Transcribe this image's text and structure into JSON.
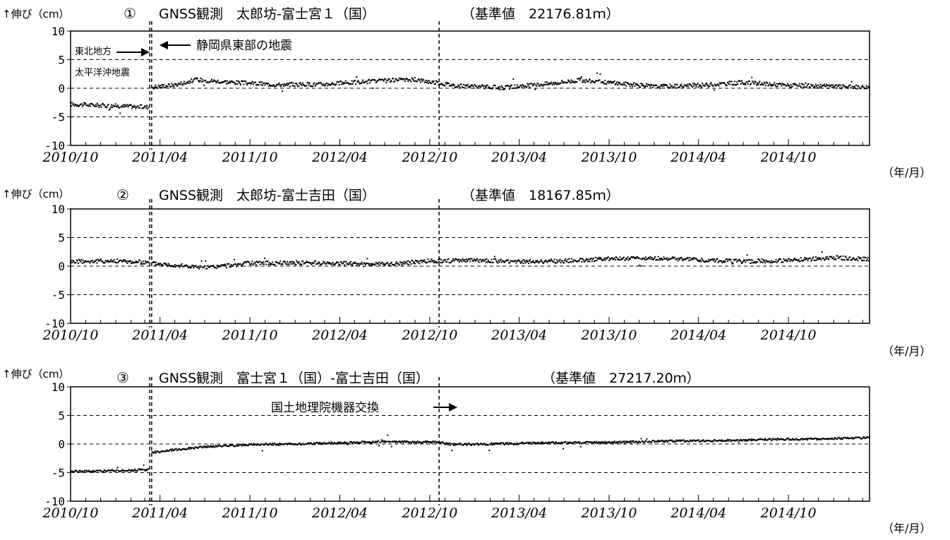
{
  "unit_label": "↑伸び（cm）",
  "xaxis_unit": "（年/月）",
  "x_ticks": [
    "2010/10",
    "2011/04",
    "2011/10",
    "2012/04",
    "2012/10",
    "2013/04",
    "2013/10",
    "2014/04",
    "2014/10"
  ],
  "annotations": {
    "tohoku_line1": "東北地方",
    "tohoku_line2": "太平洋沖地震",
    "shizuoka": "静岡県東部の地震",
    "equipment": "国土地理院機器交換"
  },
  "events": {
    "tohoku_quake": "2011-03-11",
    "shizuoka_quake": "2011-03-15",
    "equipment_change": "2012-10-20"
  },
  "chart_data": [
    {
      "type": "scatter",
      "number": "①",
      "title_name": "GNSS観測　太郎坊-富士宮１（国）",
      "baseline_label": "（基準値　22176.81ｍ）",
      "ylabel": "伸び（cm）",
      "ylim": [
        -10,
        10
      ],
      "yticks": [
        10,
        5,
        0,
        -5,
        -10
      ],
      "xlim": [
        "2010-10-01",
        "2015-03-15"
      ],
      "grid": "dashed horizontal at ±5",
      "series": [
        {
          "x": [
            "2010-10-01",
            "2010-12-01",
            "2011-03-10",
            "2011-03-16",
            "2011-05-01",
            "2011-06-15",
            "2011-09-01",
            "2011-12-01",
            "2012-03-01",
            "2012-06-01",
            "2012-09-01",
            "2012-12-01",
            "2013-03-01",
            "2013-06-01",
            "2013-08-01",
            "2013-10-15",
            "2014-01-01",
            "2014-04-01",
            "2014-07-01",
            "2014-10-01",
            "2015-01-01",
            "2015-03-15"
          ],
          "y": [
            -2.8,
            -3.0,
            -3.3,
            0.2,
            0.6,
            1.5,
            1.0,
            0.6,
            0.7,
            1.2,
            1.5,
            0.4,
            0.1,
            0.8,
            1.4,
            0.9,
            0.3,
            0.5,
            1.0,
            0.5,
            0.3,
            0.2
          ]
        }
      ]
    },
    {
      "type": "scatter",
      "number": "②",
      "title_name": "GNSS観測　太郎坊-富士吉田（国）",
      "baseline_label": "（基準値　18167.85ｍ）",
      "ylabel": "伸び（cm）",
      "ylim": [
        -10,
        10
      ],
      "yticks": [
        10,
        5,
        0,
        -5,
        -10
      ],
      "xlim": [
        "2010-10-01",
        "2015-03-15"
      ],
      "grid": "dashed horizontal at ±5",
      "series": [
        {
          "x": [
            "2010-10-01",
            "2011-01-01",
            "2011-03-10",
            "2011-03-16",
            "2011-05-01",
            "2011-07-01",
            "2011-10-01",
            "2012-01-01",
            "2012-04-01",
            "2012-07-01",
            "2012-10-01",
            "2013-01-01",
            "2013-04-01",
            "2013-07-01",
            "2013-10-01",
            "2014-01-01",
            "2014-04-01",
            "2014-07-01",
            "2014-10-01",
            "2015-01-01",
            "2015-03-15"
          ],
          "y": [
            0.8,
            0.9,
            0.6,
            0.5,
            0.2,
            -0.3,
            0.5,
            0.6,
            0.5,
            0.3,
            0.9,
            1.0,
            0.8,
            0.9,
            1.3,
            1.4,
            1.1,
            0.8,
            1.0,
            1.5,
            1.2
          ]
        }
      ]
    },
    {
      "type": "scatter",
      "number": "③",
      "title_name": "GNSS観測　富士宮１（国）-富士吉田（国）",
      "baseline_label": "（基準値　27217.20ｍ）",
      "ylabel": "伸び（cm）",
      "ylim": [
        -10,
        10
      ],
      "yticks": [
        10,
        5,
        0,
        -5,
        -10
      ],
      "xlim": [
        "2010-10-01",
        "2015-03-15"
      ],
      "grid": "dashed horizontal at ±5",
      "series": [
        {
          "x": [
            "2010-10-01",
            "2010-12-15",
            "2011-03-10",
            "2011-03-16",
            "2011-05-01",
            "2011-07-01",
            "2011-10-01",
            "2012-01-01",
            "2012-04-01",
            "2012-07-01",
            "2012-10-15",
            "2012-11-15",
            "2013-02-01",
            "2013-06-01",
            "2013-10-01",
            "2014-02-01",
            "2014-06-01",
            "2014-09-01",
            "2014-12-01",
            "2015-03-15"
          ],
          "y": [
            -4.8,
            -4.7,
            -4.5,
            -1.5,
            -1.0,
            -0.5,
            -0.1,
            0.0,
            0.2,
            0.4,
            0.3,
            -0.1,
            0.0,
            0.2,
            0.3,
            0.5,
            0.6,
            0.8,
            0.9,
            1.1
          ]
        }
      ]
    }
  ]
}
